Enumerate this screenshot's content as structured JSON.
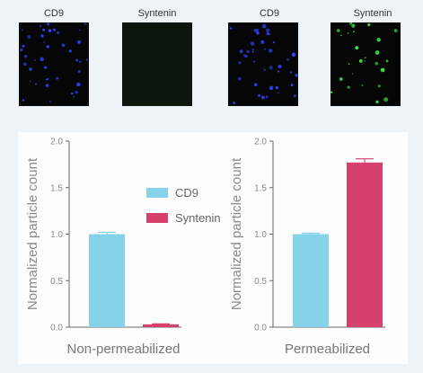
{
  "images": [
    {
      "label": "CD9",
      "channel": "blue",
      "color": "#3344ff"
    },
    {
      "label": "Syntenin",
      "channel": "none",
      "color": "#0d160d"
    },
    {
      "label": "CD9",
      "channel": "blue",
      "color": "#3344ff"
    },
    {
      "label": "Syntenin",
      "channel": "green",
      "color": "#33ee44"
    }
  ],
  "legend": [
    {
      "name": "CD9",
      "color": "#86d2e8"
    },
    {
      "name": "Syntenin",
      "color": "#d6406c"
    }
  ],
  "chart_data": [
    {
      "type": "bar",
      "categories": [
        "CD9",
        "Syntenin"
      ],
      "values": [
        1.0,
        0.03
      ],
      "errors": [
        0.02,
        0.005
      ],
      "colors": [
        "#86d2e8",
        "#d6406c"
      ],
      "ylabel": "Normalized particle count",
      "xlabel": "Non-permeabilized",
      "ylim": [
        0,
        2.0
      ],
      "yticks": [
        "0.0",
        "0.5",
        "1.0",
        "1.5",
        "2.0"
      ],
      "legend_position": "top-right"
    },
    {
      "type": "bar",
      "categories": [
        "CD9",
        "Syntenin"
      ],
      "values": [
        1.0,
        1.77
      ],
      "errors": [
        0.01,
        0.04
      ],
      "colors": [
        "#86d2e8",
        "#d6406c"
      ],
      "ylabel": "Normalized particle count",
      "xlabel": "Permeabilized",
      "ylim": [
        0,
        2.0
      ],
      "yticks": [
        "0.0",
        "0.5",
        "1.0",
        "1.5",
        "2.0"
      ]
    }
  ]
}
